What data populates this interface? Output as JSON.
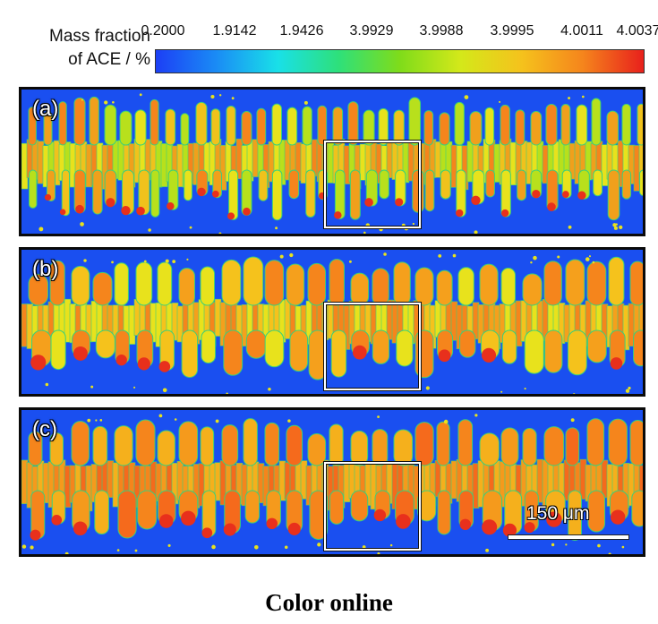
{
  "legend": {
    "title_line1": "Mass fraction",
    "title_line2": "of ACE / %",
    "ticks": [
      "0.2000",
      "1.9142",
      "1.9426",
      "3.9929",
      "3.9988",
      "3.9995",
      "4.0011",
      "4.0037"
    ],
    "colors": [
      "#1c3ff5",
      "#1a8cf5",
      "#19e0e8",
      "#2ee07a",
      "#7fdc1a",
      "#d4e81a",
      "#f5c21c",
      "#f5851c",
      "#e8201c"
    ]
  },
  "panels": [
    {
      "label": "(a)"
    },
    {
      "label": "(b)"
    },
    {
      "label": "(c)"
    }
  ],
  "scale_bar": {
    "label": "150 μm"
  },
  "caption": "Color online"
}
